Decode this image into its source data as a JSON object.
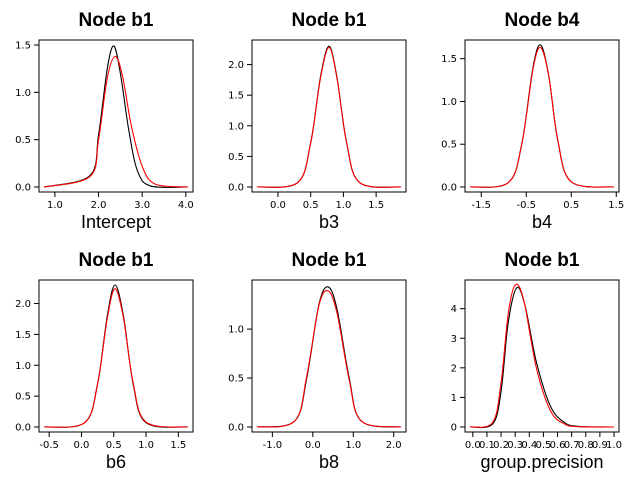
{
  "colors": {
    "series1": "#000000",
    "series2": "#ff0000"
  },
  "chart_data": [
    {
      "type": "line",
      "title": "Node b1",
      "xlabel": "Intercept",
      "xlim": [
        0.75,
        4.05
      ],
      "ylim": [
        0,
        1.5
      ],
      "xticks": [
        "1.0",
        "2.0",
        "3.0",
        "4.0"
      ],
      "xtick_values": [
        1.0,
        2.0,
        3.0,
        4.0
      ],
      "yticks": [
        "0.0",
        "0.5",
        "1.0",
        "1.5"
      ],
      "ytick_values": [
        0.0,
        0.5,
        1.0,
        1.5
      ],
      "series": [
        {
          "color": "#000000",
          "values": [
            [
              0.75,
              0
            ],
            [
              1.8,
              0.12
            ],
            [
              2.0,
              0.55
            ],
            [
              2.2,
              1.25
            ],
            [
              2.35,
              1.49
            ],
            [
              2.5,
              1.2
            ],
            [
              2.7,
              0.58
            ],
            [
              2.9,
              0.16
            ],
            [
              3.2,
              0.01
            ],
            [
              4.05,
              0
            ]
          ]
        },
        {
          "color": "#ff0000",
          "values": [
            [
              0.75,
              0
            ],
            [
              1.8,
              0.11
            ],
            [
              2.0,
              0.5
            ],
            [
              2.2,
              1.15
            ],
            [
              2.38,
              1.38
            ],
            [
              2.55,
              1.17
            ],
            [
              2.75,
              0.65
            ],
            [
              3.0,
              0.22
            ],
            [
              3.3,
              0.03
            ],
            [
              4.05,
              0
            ]
          ]
        }
      ]
    },
    {
      "type": "line",
      "title": "Node b1",
      "xlabel": "b3",
      "xlim": [
        -0.32,
        1.88
      ],
      "ylim": [
        0,
        2.32
      ],
      "xticks": [
        "0.0",
        "0.5",
        "1.0",
        "1.5"
      ],
      "xtick_values": [
        0.0,
        0.5,
        1.0,
        1.5
      ],
      "yticks": [
        "0.0",
        "0.5",
        "1.0",
        "1.5",
        "2.0"
      ],
      "ytick_values": [
        0.0,
        0.5,
        1.0,
        1.5,
        2.0
      ],
      "series": [
        {
          "color": "#000000",
          "values": [
            [
              -0.32,
              0
            ],
            [
              0.3,
              0.07
            ],
            [
              0.5,
              0.72
            ],
            [
              0.65,
              1.8
            ],
            [
              0.78,
              2.3
            ],
            [
              0.9,
              1.8
            ],
            [
              1.05,
              0.72
            ],
            [
              1.25,
              0.07
            ],
            [
              1.88,
              0
            ]
          ]
        },
        {
          "color": "#ff0000",
          "values": [
            [
              -0.32,
              0
            ],
            [
              0.3,
              0.07
            ],
            [
              0.5,
              0.72
            ],
            [
              0.65,
              1.78
            ],
            [
              0.78,
              2.28
            ],
            [
              0.9,
              1.79
            ],
            [
              1.05,
              0.72
            ],
            [
              1.25,
              0.07
            ],
            [
              1.88,
              0
            ]
          ]
        }
      ]
    },
    {
      "type": "line",
      "title": "Node b4",
      "xlabel": "b4",
      "xlim": [
        -1.75,
        1.45
      ],
      "ylim": [
        0,
        1.66
      ],
      "xticks": [
        "-1.5",
        "-0.5",
        "0.5",
        "1.5"
      ],
      "xtick_values": [
        -1.5,
        -0.5,
        0.5,
        1.5
      ],
      "yticks": [
        "0.0",
        "0.5",
        "1.0",
        "1.5"
      ],
      "ytick_values": [
        0.0,
        0.5,
        1.0,
        1.5
      ],
      "series": [
        {
          "color": "#000000",
          "values": [
            [
              -1.75,
              0
            ],
            [
              -0.9,
              0.05
            ],
            [
              -0.6,
              0.5
            ],
            [
              -0.35,
              1.4
            ],
            [
              -0.18,
              1.66
            ],
            [
              0.0,
              1.3
            ],
            [
              0.2,
              0.55
            ],
            [
              0.5,
              0.06
            ],
            [
              1.45,
              0
            ]
          ]
        },
        {
          "color": "#ff0000",
          "values": [
            [
              -1.75,
              0
            ],
            [
              -0.9,
              0.05
            ],
            [
              -0.6,
              0.5
            ],
            [
              -0.35,
              1.38
            ],
            [
              -0.18,
              1.63
            ],
            [
              0.0,
              1.3
            ],
            [
              0.2,
              0.55
            ],
            [
              0.5,
              0.06
            ],
            [
              1.45,
              0
            ]
          ]
        }
      ]
    },
    {
      "type": "line",
      "title": "Node b1",
      "xlabel": "b6",
      "xlim": [
        -0.58,
        1.65
      ],
      "ylim": [
        0,
        2.3
      ],
      "xticks": [
        "-0.5",
        "0.0",
        "0.5",
        "1.0",
        "1.5"
      ],
      "xtick_values": [
        -0.5,
        0.0,
        0.5,
        1.0,
        1.5
      ],
      "yticks": [
        "0.0",
        "0.5",
        "1.0",
        "1.5",
        "2.0"
      ],
      "ytick_values": [
        0.0,
        0.5,
        1.0,
        1.5,
        2.0
      ],
      "series": [
        {
          "color": "#000000",
          "values": [
            [
              -0.58,
              0
            ],
            [
              0.05,
              0.07
            ],
            [
              0.25,
              0.7
            ],
            [
              0.4,
              1.8
            ],
            [
              0.52,
              2.3
            ],
            [
              0.65,
              1.8
            ],
            [
              0.8,
              0.7
            ],
            [
              1.0,
              0.07
            ],
            [
              1.65,
              0
            ]
          ]
        },
        {
          "color": "#ff0000",
          "values": [
            [
              -0.58,
              0
            ],
            [
              0.05,
              0.07
            ],
            [
              0.25,
              0.7
            ],
            [
              0.4,
              1.76
            ],
            [
              0.52,
              2.24
            ],
            [
              0.65,
              1.77
            ],
            [
              0.8,
              0.72
            ],
            [
              1.0,
              0.08
            ],
            [
              1.65,
              0
            ]
          ]
        }
      ]
    },
    {
      "type": "line",
      "title": "Node b1",
      "xlabel": "b8",
      "xlim": [
        -1.38,
        2.18
      ],
      "ylim": [
        0,
        1.45
      ],
      "xticks": [
        "-1.0",
        "0.0",
        "1.0",
        "2.0"
      ],
      "xtick_values": [
        -1.0,
        0.0,
        1.0,
        2.0
      ],
      "yticks": [
        "0.0",
        "0.5",
        "1.0"
      ],
      "ytick_values": [
        0.0,
        0.5,
        1.0
      ],
      "series": [
        {
          "color": "#000000",
          "values": [
            [
              -1.38,
              0
            ],
            [
              -0.45,
              0.06
            ],
            [
              -0.15,
              0.5
            ],
            [
              0.15,
              1.25
            ],
            [
              0.38,
              1.43
            ],
            [
              0.6,
              1.2
            ],
            [
              0.9,
              0.5
            ],
            [
              1.2,
              0.06
            ],
            [
              2.18,
              0
            ]
          ]
        },
        {
          "color": "#ff0000",
          "values": [
            [
              -1.38,
              0
            ],
            [
              -0.45,
              0.06
            ],
            [
              -0.15,
              0.52
            ],
            [
              0.15,
              1.24
            ],
            [
              0.38,
              1.39
            ],
            [
              0.6,
              1.16
            ],
            [
              0.9,
              0.48
            ],
            [
              1.2,
              0.06
            ],
            [
              2.18,
              0
            ]
          ]
        }
      ]
    },
    {
      "type": "line",
      "title": "Node b1",
      "xlabel": "group.precision",
      "xlim": [
        -0.02,
        1.0
      ],
      "ylim": [
        0,
        4.8
      ],
      "xticks": [
        "0.0",
        "0.1",
        "0.2",
        "0.3",
        "0.4",
        "0.5",
        "0.6",
        "0.7",
        "0.8",
        "0.9",
        "1.0"
      ],
      "xtick_values": [
        0.0,
        0.1,
        0.2,
        0.3,
        0.4,
        0.5,
        0.6,
        0.7,
        0.8,
        0.9,
        1.0
      ],
      "yticks": [
        "0",
        "1",
        "2",
        "3",
        "4"
      ],
      "ytick_values": [
        0,
        1,
        2,
        3,
        4
      ],
      "series": [
        {
          "color": "#000000",
          "values": [
            [
              -0.02,
              0
            ],
            [
              0.14,
              0.1
            ],
            [
              0.2,
              1.2
            ],
            [
              0.25,
              3.5
            ],
            [
              0.31,
              4.7
            ],
            [
              0.37,
              4.1
            ],
            [
              0.45,
              2.2
            ],
            [
              0.55,
              0.7
            ],
            [
              0.65,
              0.15
            ],
            [
              0.75,
              0.02
            ],
            [
              1.0,
              0
            ]
          ]
        },
        {
          "color": "#ff0000",
          "values": [
            [
              -0.02,
              0
            ],
            [
              0.14,
              0.15
            ],
            [
              0.2,
              1.5
            ],
            [
              0.25,
              3.8
            ],
            [
              0.3,
              4.8
            ],
            [
              0.36,
              4.3
            ],
            [
              0.45,
              2.0
            ],
            [
              0.55,
              0.55
            ],
            [
              0.65,
              0.1
            ],
            [
              0.75,
              0.01
            ],
            [
              1.0,
              0
            ]
          ]
        }
      ]
    }
  ]
}
